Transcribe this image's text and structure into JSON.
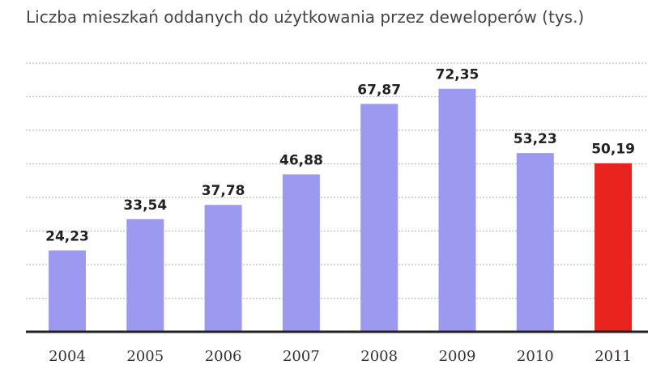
{
  "chart_data": {
    "type": "bar",
    "title": "Liczba mieszkań oddanych do użytkowania przez deweloperów (tys.)",
    "xlabel": "",
    "ylabel": "",
    "categories": [
      "2004",
      "2005",
      "2006",
      "2007",
      "2008",
      "2009",
      "2010",
      "2011"
    ],
    "values": [
      24.23,
      33.54,
      37.78,
      46.88,
      67.87,
      72.35,
      53.23,
      50.19
    ],
    "value_labels": [
      "24,23",
      "33,54",
      "37,78",
      "46,88",
      "67,87",
      "72,35",
      "53,23",
      "50,19"
    ],
    "ylim": [
      0,
      80
    ],
    "grid": true,
    "legend": "none",
    "colors": {
      "bar": "#9c9af0",
      "highlight": "#e8231e",
      "highlight_index": 7,
      "grid": "#bdbdbd",
      "baseline": "#222222"
    }
  }
}
